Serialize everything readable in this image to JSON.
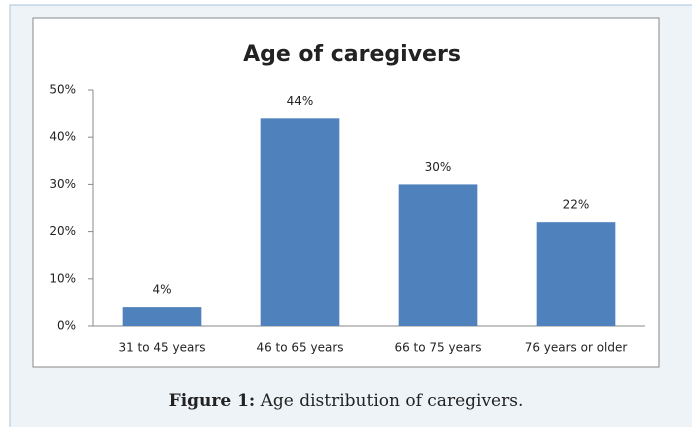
{
  "chart_data": {
    "type": "bar",
    "title": "Age of caregivers",
    "categories": [
      "31 to 45 years",
      "46 to 65 years",
      "66 to 75 years",
      "76 years or older"
    ],
    "values": [
      4,
      44,
      30,
      22
    ],
    "value_labels": [
      "4%",
      "44%",
      "30%",
      "22%"
    ],
    "color": "#4f81bd",
    "ylim": [
      0,
      50
    ],
    "yticks": [
      {
        "value": 0,
        "label": "0%"
      },
      {
        "value": 10,
        "label": "10%"
      },
      {
        "value": 20,
        "label": "20%"
      },
      {
        "value": 30,
        "label": "30%"
      },
      {
        "value": 40,
        "label": "40%"
      },
      {
        "value": 50,
        "label": "50%"
      }
    ],
    "grid": false
  },
  "caption": {
    "label": "Figure 1:",
    "text": "Age distribution of caregivers."
  }
}
